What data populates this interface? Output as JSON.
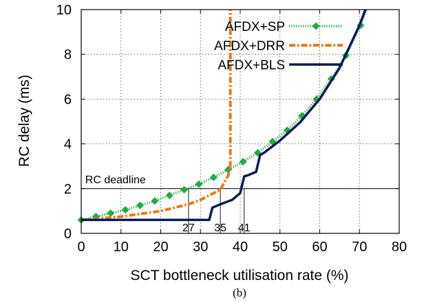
{
  "caption": "(b)",
  "chart_data": {
    "type": "line",
    "title": "",
    "xlabel": "SCT bottleneck utilisation rate (%)",
    "ylabel": "RC delay (ms)",
    "xlim": [
      0,
      80
    ],
    "ylim": [
      0,
      10
    ],
    "xticks": [
      0,
      10,
      20,
      30,
      40,
      50,
      60,
      70,
      80
    ],
    "yticks": [
      0,
      2,
      4,
      6,
      8,
      10
    ],
    "grid": "dashed",
    "legend_position": "top-right",
    "series": [
      {
        "name": "AFDX+SP",
        "color": "#22aa44",
        "style": "dotted-with-diamond-markers",
        "x": [
          0,
          3.7,
          7.4,
          11.1,
          14.8,
          18.5,
          22.2,
          25.9,
          29.6,
          33.3,
          37,
          40.7,
          44.4,
          48.1,
          51.8,
          55.5,
          59.2,
          62.9,
          66.6,
          70.3,
          71.7
        ],
        "y": [
          0.6,
          0.75,
          0.9,
          1.05,
          1.25,
          1.45,
          1.7,
          1.95,
          2.2,
          2.5,
          2.85,
          3.2,
          3.6,
          4.1,
          4.6,
          5.25,
          6.0,
          6.9,
          7.95,
          9.3,
          10.0
        ]
      },
      {
        "name": "AFDX+DRR",
        "color": "#ee7711",
        "style": "dash-dot",
        "x": [
          0,
          10,
          20,
          27,
          30,
          35,
          37,
          37.5,
          37.5
        ],
        "y": [
          0.6,
          0.75,
          1.0,
          1.3,
          1.5,
          1.95,
          2.6,
          3.0,
          10.0
        ]
      },
      {
        "name": "AFDX+BLS",
        "color": "#0a1a55",
        "style": "solid",
        "x": [
          0,
          10,
          20,
          30,
          32.2,
          33,
          35,
          38,
          40,
          41,
          42,
          44,
          45,
          46,
          50,
          55,
          60,
          65,
          70,
          71.5
        ],
        "y": [
          0.6,
          0.6,
          0.6,
          0.6,
          0.6,
          1.15,
          1.3,
          1.5,
          1.8,
          2.55,
          2.6,
          2.75,
          3.5,
          3.6,
          4.15,
          4.95,
          6.0,
          7.4,
          9.3,
          10.0
        ]
      }
    ],
    "reference_line": {
      "label": "RC deadline",
      "y": 2
    },
    "markers": [
      {
        "label": "27",
        "x": 27,
        "y": 2
      },
      {
        "label": "35",
        "x": 35,
        "y": 2
      },
      {
        "label": "41",
        "x": 41,
        "y": 2
      }
    ]
  }
}
